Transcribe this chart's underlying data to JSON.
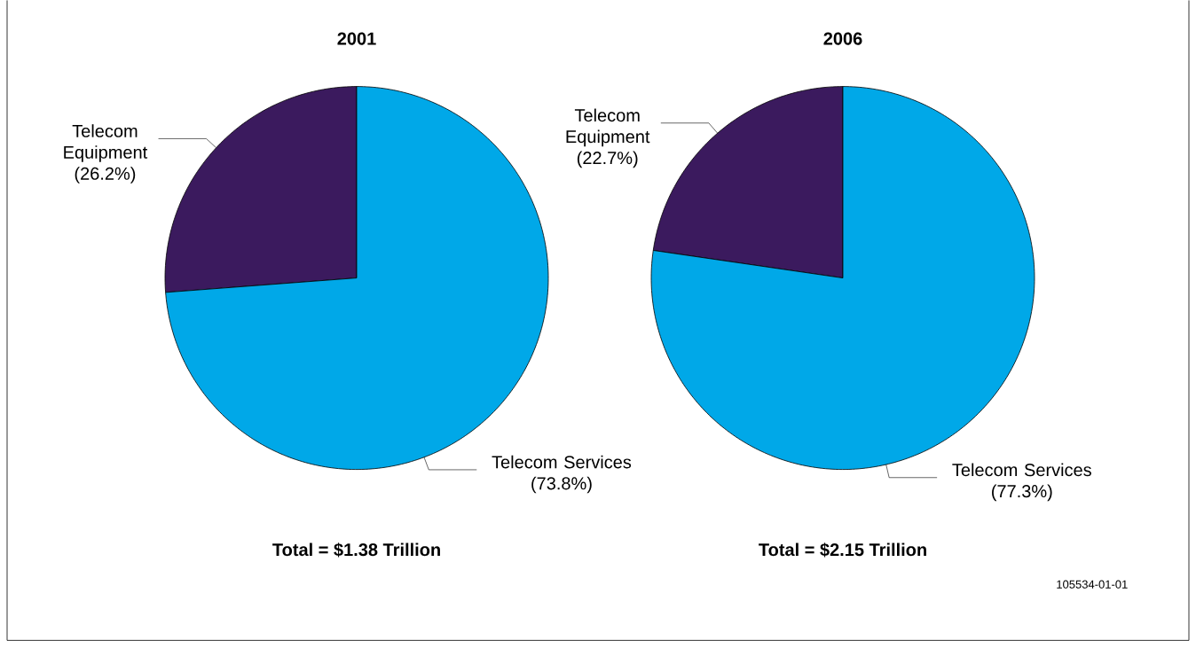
{
  "chart_data": [
    {
      "type": "pie",
      "title": "2001",
      "categories": [
        "Telecom Equipment",
        "Telecom Services"
      ],
      "values": [
        26.2,
        73.8
      ],
      "value_labels": [
        "(26.2%)",
        "(73.8%)"
      ],
      "colors": [
        "#3b1a5e",
        "#00a8e8"
      ],
      "annotations": [
        "Total = $1.38 Trillion"
      ]
    },
    {
      "type": "pie",
      "title": "2006",
      "categories": [
        "Telecom Equipment",
        "Telecom Services"
      ],
      "values": [
        22.7,
        77.3
      ],
      "value_labels": [
        "(22.7%)",
        "(77.3%)"
      ],
      "colors": [
        "#3b1a5e",
        "#00a8e8"
      ],
      "annotations": [
        "Total = $2.15 Trillion",
        "105534-01-01"
      ]
    }
  ]
}
